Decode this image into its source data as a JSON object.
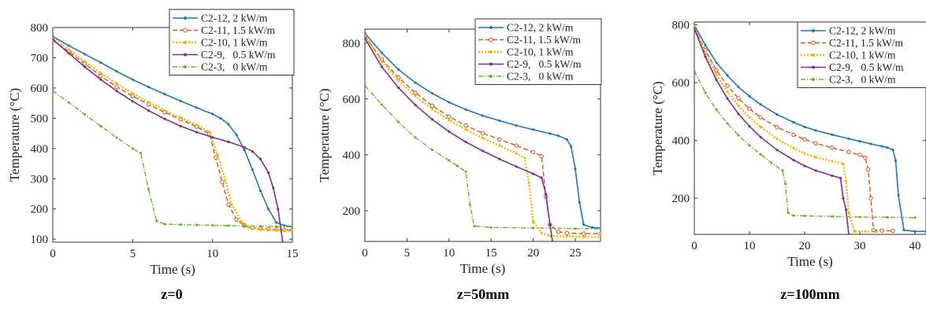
{
  "series_styles": [
    {
      "color": "#1f77b4",
      "dash": "",
      "marker": "dot",
      "width": 1.6
    },
    {
      "color": "#d9531e",
      "dash": "6,3",
      "marker": "ring",
      "width": 1.4
    },
    {
      "color": "#f5b400",
      "dash": "2,2",
      "marker": "dot",
      "width": 2.4
    },
    {
      "color": "#7e2f8e",
      "dash": "",
      "marker": "dot",
      "width": 1.6
    },
    {
      "color": "#77ac30",
      "dash": "6,2,1.5,2",
      "marker": "dot",
      "width": 1.4
    }
  ],
  "chart_data": [
    {
      "type": "line",
      "caption": "z=0",
      "xlabel": "Time (s)",
      "ylabel": "Temperature (°C)",
      "xlim": [
        0,
        15
      ],
      "ylim": [
        90,
        800
      ],
      "xticks": [
        0,
        5,
        10,
        15
      ],
      "yticks": [
        100,
        200,
        300,
        400,
        500,
        600,
        700,
        800
      ],
      "series": [
        {
          "name": "C2-12, 2 kW/m",
          "x": [
            0,
            1,
            2,
            3,
            4,
            5,
            6,
            7,
            8,
            9,
            10,
            10.5,
            11,
            11.5,
            12,
            12.5,
            13,
            13.5,
            14,
            14.5,
            15
          ],
          "y": [
            770,
            740,
            712,
            684,
            655,
            628,
            603,
            580,
            557,
            535,
            514,
            500,
            480,
            445,
            395,
            330,
            260,
            200,
            155,
            145,
            142
          ]
        },
        {
          "name": "C2-11, 1.5 kW/m",
          "x": [
            0,
            1,
            2,
            3,
            4,
            5,
            6,
            7,
            8,
            9,
            9.8,
            10.2,
            10.6,
            11,
            11.5,
            12,
            12.5,
            13,
            13.5,
            14,
            14.5,
            15
          ],
          "y": [
            758,
            720,
            680,
            640,
            604,
            573,
            546,
            520,
            496,
            472,
            448,
            370,
            290,
            215,
            165,
            145,
            138,
            135,
            133,
            132,
            131,
            130
          ]
        },
        {
          "name": "C2-10, 1 kW/m",
          "x": [
            0,
            1,
            2,
            3,
            4,
            5,
            6,
            7,
            8,
            9,
            9.8,
            10.3,
            10.8,
            11.2,
            11.8,
            12.3,
            13,
            13.5,
            14,
            14.5,
            15
          ],
          "y": [
            765,
            727,
            688,
            650,
            614,
            582,
            553,
            526,
            502,
            478,
            455,
            380,
            295,
            215,
            160,
            138,
            132,
            130,
            129,
            128,
            127
          ]
        },
        {
          "name": "C2-9,   0.5 kW/m",
          "x": [
            0,
            1,
            2,
            3,
            4,
            5,
            6,
            7,
            8,
            9,
            10,
            11,
            12,
            12.5,
            13,
            13.5,
            13.8,
            14.1,
            14.4
          ],
          "y": [
            760,
            715,
            670,
            628,
            590,
            556,
            525,
            498,
            474,
            454,
            437,
            422,
            404,
            390,
            365,
            320,
            270,
            200,
            90
          ]
        },
        {
          "name": "C2-3,   0 kW/m",
          "x": [
            0,
            1,
            2,
            3,
            4,
            5,
            5.5,
            6,
            6.5,
            7,
            8,
            9,
            10,
            11,
            12,
            13,
            14,
            15
          ],
          "y": [
            590,
            552,
            513,
            474,
            436,
            400,
            385,
            265,
            160,
            150,
            148,
            147,
            146,
            145,
            144,
            143,
            142,
            141
          ]
        }
      ]
    },
    {
      "type": "line",
      "caption": "z=50mm",
      "xlabel": "Time (s)",
      "ylabel": "Temperature (°C)",
      "xlim": [
        0,
        28
      ],
      "ylim": [
        90,
        850
      ],
      "xticks": [
        0,
        5,
        10,
        15,
        20,
        25
      ],
      "yticks": [
        200,
        400,
        600,
        800
      ],
      "series": [
        {
          "name": "C2-12, 2 kW/m",
          "x": [
            0,
            2,
            4,
            6,
            8,
            10,
            12,
            14,
            16,
            18,
            20,
            22,
            23,
            24,
            24.5,
            25,
            25.5,
            26,
            27,
            28
          ],
          "y": [
            835,
            765,
            705,
            658,
            620,
            588,
            562,
            540,
            522,
            505,
            490,
            476,
            468,
            455,
            430,
            350,
            230,
            150,
            140,
            138
          ]
        },
        {
          "name": "C2-11, 1.5 kW/m",
          "x": [
            0,
            2,
            4,
            6,
            8,
            10,
            12,
            14,
            16,
            18,
            20,
            21,
            21.5,
            22,
            23,
            24,
            26,
            28
          ],
          "y": [
            825,
            742,
            677,
            622,
            576,
            537,
            505,
            478,
            455,
            433,
            410,
            395,
            250,
            150,
            125,
            120,
            118,
            118
          ]
        },
        {
          "name": "C2-10, 1 kW/m",
          "x": [
            0,
            2,
            4,
            6,
            8,
            10,
            12,
            14,
            16,
            18,
            19,
            19.5,
            20,
            21,
            22,
            24,
            26,
            28
          ],
          "y": [
            828,
            735,
            665,
            610,
            564,
            524,
            490,
            460,
            433,
            405,
            388,
            300,
            160,
            120,
            110,
            108,
            106,
            105
          ]
        },
        {
          "name": "C2-9,   0.5 kW/m",
          "x": [
            0,
            2,
            4,
            6,
            8,
            10,
            12,
            14,
            16,
            18,
            20,
            21,
            21.5,
            22,
            22.3
          ],
          "y": [
            818,
            715,
            640,
            578,
            527,
            483,
            446,
            414,
            385,
            358,
            332,
            318,
            260,
            150,
            90
          ]
        },
        {
          "name": "C2-3,   0 kW/m",
          "x": [
            0,
            2,
            4,
            6,
            8,
            10,
            11,
            12,
            12.5,
            13,
            15,
            20,
            25,
            28
          ],
          "y": [
            648,
            580,
            517,
            462,
            418,
            380,
            360,
            340,
            220,
            145,
            140,
            138,
            136,
            135
          ]
        }
      ]
    },
    {
      "type": "line",
      "caption": "z=100mm",
      "xlabel": "Time (s)",
      "ylabel": "Temperature (°C)",
      "xlim": [
        0,
        42
      ],
      "ylim": [
        75,
        810
      ],
      "xticks": [
        0,
        10,
        20,
        30,
        40
      ],
      "yticks": [
        200,
        400,
        600,
        800
      ],
      "series": [
        {
          "name": "C2-12, 2 kW/m",
          "x": [
            0,
            2,
            4,
            6,
            8,
            10,
            12,
            15,
            18,
            20,
            22,
            25,
            28,
            30,
            32,
            34,
            35,
            36,
            36.5,
            37,
            38,
            40,
            42
          ],
          "y": [
            800,
            730,
            670,
            625,
            585,
            553,
            525,
            490,
            463,
            447,
            435,
            420,
            406,
            397,
            388,
            380,
            375,
            368,
            330,
            210,
            90,
            85,
            85
          ]
        },
        {
          "name": "C2-11, 1.5 kW/m",
          "x": [
            0,
            2,
            4,
            6,
            8,
            10,
            12,
            15,
            18,
            20,
            22,
            25,
            28,
            30,
            31,
            31.5,
            32,
            32.5,
            34,
            36
          ],
          "y": [
            790,
            713,
            643,
            590,
            546,
            510,
            480,
            446,
            420,
            404,
            390,
            375,
            360,
            350,
            340,
            300,
            200,
            90,
            88,
            87
          ]
        },
        {
          "name": "C2-10, 1 kW/m",
          "x": [
            0,
            2,
            4,
            6,
            8,
            10,
            12,
            15,
            18,
            20,
            22,
            25,
            27,
            27.5,
            28,
            29,
            31,
            33
          ],
          "y": [
            795,
            700,
            627,
            569,
            520,
            480,
            447,
            405,
            373,
            355,
            342,
            328,
            320,
            260,
            150,
            85,
            85,
            84
          ]
        },
        {
          "name": "C2-9,   0.5 kW/m",
          "x": [
            0,
            2,
            4,
            6,
            8,
            10,
            12,
            15,
            18,
            20,
            22,
            25,
            26.5,
            27,
            27.5,
            28
          ],
          "y": [
            788,
            690,
            610,
            545,
            492,
            449,
            412,
            367,
            332,
            312,
            296,
            278,
            270,
            200,
            160,
            75
          ]
        },
        {
          "name": "C2-3,   0 kW/m",
          "x": [
            0,
            2,
            4,
            6,
            8,
            10,
            12,
            14,
            16,
            16.5,
            17,
            18,
            20,
            25,
            30,
            35,
            40
          ],
          "y": [
            640,
            565,
            507,
            459,
            418,
            383,
            352,
            322,
            296,
            250,
            150,
            140,
            139,
            137,
            135,
            134,
            133
          ]
        }
      ]
    }
  ]
}
